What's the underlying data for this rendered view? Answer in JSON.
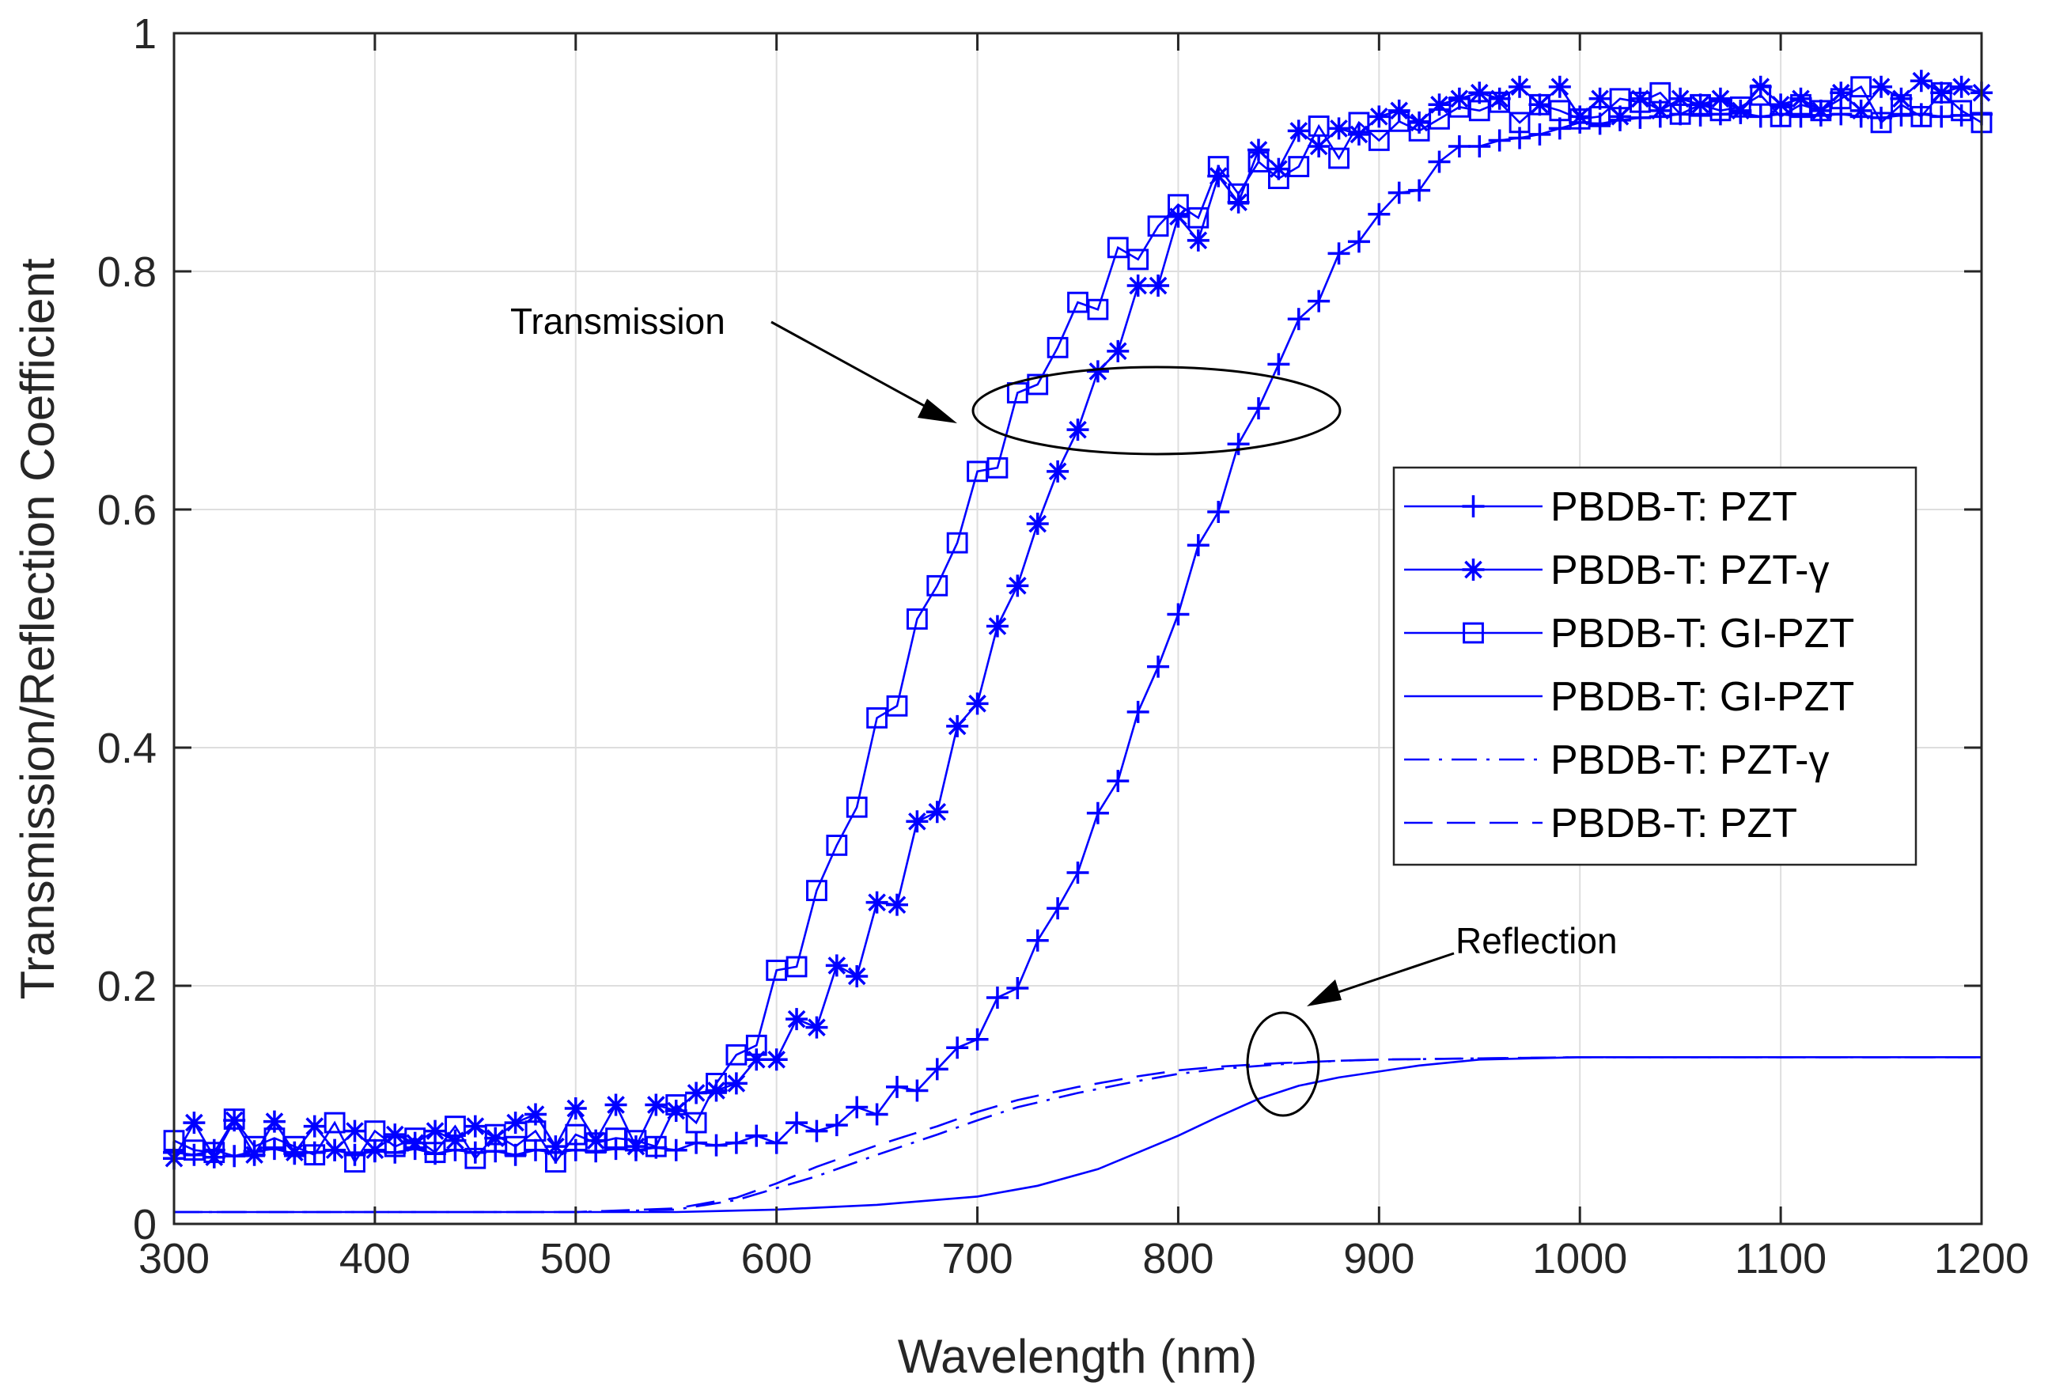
{
  "chart_data": {
    "type": "line",
    "title": "",
    "xlabel": "Wavelength (nm)",
    "ylabel": "Transmission/Reflection Coefficient",
    "xlim": [
      300,
      1200
    ],
    "ylim": [
      0,
      1
    ],
    "xticks": [
      300,
      400,
      500,
      600,
      700,
      800,
      900,
      1000,
      1100,
      1200
    ],
    "yticks": [
      0,
      0.2,
      0.4,
      0.6,
      0.8,
      1
    ],
    "ytick_labels": [
      "0",
      "0.2",
      "0.4",
      "0.6",
      "0.8",
      "1"
    ],
    "grid": true,
    "legend_position": "right",
    "colors": {
      "series": "#0000ff",
      "axis": "#262626",
      "grid": "#dedede"
    },
    "annotations": [
      {
        "text": "Transmission",
        "points_to": "transmission curves (ellipse)"
      },
      {
        "text": "Reflection",
        "points_to": "reflection curves (ellipse)"
      }
    ],
    "series": [
      {
        "name": "PBDB-T: PZT",
        "group": "transmission",
        "line": "solid",
        "marker": "plus",
        "x": [
          300,
          310,
          320,
          330,
          340,
          350,
          360,
          370,
          380,
          390,
          400,
          410,
          420,
          430,
          440,
          450,
          460,
          470,
          480,
          490,
          500,
          510,
          520,
          530,
          540,
          550,
          560,
          570,
          580,
          590,
          600,
          610,
          620,
          630,
          640,
          650,
          660,
          670,
          680,
          690,
          700,
          710,
          720,
          730,
          740,
          750,
          760,
          770,
          780,
          790,
          800,
          810,
          820,
          830,
          840,
          850,
          860,
          870,
          880,
          890,
          900,
          910,
          920,
          930,
          940,
          950,
          960,
          970,
          980,
          990,
          1000,
          1010,
          1020,
          1030,
          1040,
          1050,
          1060,
          1070,
          1080,
          1090,
          1100,
          1110,
          1120,
          1130,
          1140,
          1150,
          1160,
          1170,
          1180,
          1190,
          1200
        ],
        "y": [
          0.06,
          0.058,
          0.062,
          0.057,
          0.061,
          0.063,
          0.059,
          0.06,
          0.062,
          0.058,
          0.061,
          0.06,
          0.063,
          0.059,
          0.062,
          0.06,
          0.061,
          0.058,
          0.062,
          0.06,
          0.062,
          0.061,
          0.063,
          0.062,
          0.064,
          0.062,
          0.068,
          0.066,
          0.068,
          0.074,
          0.068,
          0.085,
          0.078,
          0.083,
          0.098,
          0.092,
          0.115,
          0.112,
          0.13,
          0.148,
          0.155,
          0.19,
          0.198,
          0.238,
          0.265,
          0.295,
          0.345,
          0.372,
          0.43,
          0.468,
          0.512,
          0.57,
          0.598,
          0.655,
          0.685,
          0.722,
          0.76,
          0.775,
          0.815,
          0.825,
          0.848,
          0.866,
          0.868,
          0.892,
          0.905,
          0.905,
          0.91,
          0.912,
          0.915,
          0.92,
          0.925,
          0.924,
          0.927,
          0.929,
          0.93,
          0.932,
          0.931,
          0.932,
          0.933,
          0.93,
          0.932,
          0.93,
          0.931,
          0.932,
          0.93,
          0.929,
          0.931,
          0.932,
          0.93,
          0.931,
          0.932
        ]
      },
      {
        "name": "PBDB-T: PZT-γ",
        "group": "transmission",
        "line": "solid",
        "marker": "asterisk",
        "x": [
          300,
          310,
          320,
          330,
          340,
          350,
          360,
          370,
          380,
          390,
          400,
          410,
          420,
          430,
          440,
          450,
          460,
          470,
          480,
          490,
          500,
          510,
          520,
          530,
          540,
          550,
          560,
          570,
          580,
          590,
          600,
          610,
          620,
          630,
          640,
          650,
          660,
          670,
          680,
          690,
          700,
          710,
          720,
          730,
          740,
          750,
          760,
          770,
          780,
          790,
          800,
          810,
          820,
          830,
          840,
          850,
          860,
          870,
          880,
          890,
          900,
          910,
          920,
          930,
          940,
          950,
          960,
          970,
          980,
          990,
          1000,
          1010,
          1020,
          1030,
          1040,
          1050,
          1060,
          1070,
          1080,
          1090,
          1100,
          1110,
          1120,
          1130,
          1140,
          1150,
          1160,
          1170,
          1180,
          1190,
          1200
        ],
        "y": [
          0.055,
          0.085,
          0.056,
          0.087,
          0.058,
          0.086,
          0.06,
          0.082,
          0.062,
          0.078,
          0.062,
          0.075,
          0.068,
          0.078,
          0.07,
          0.082,
          0.072,
          0.085,
          0.092,
          0.065,
          0.097,
          0.07,
          0.1,
          0.065,
          0.1,
          0.095,
          0.11,
          0.112,
          0.118,
          0.138,
          0.138,
          0.172,
          0.165,
          0.217,
          0.208,
          0.27,
          0.268,
          0.338,
          0.346,
          0.418,
          0.437,
          0.502,
          0.536,
          0.588,
          0.632,
          0.667,
          0.716,
          0.733,
          0.788,
          0.788,
          0.846,
          0.826,
          0.88,
          0.858,
          0.902,
          0.886,
          0.918,
          0.905,
          0.92,
          0.915,
          0.93,
          0.935,
          0.925,
          0.94,
          0.945,
          0.95,
          0.945,
          0.955,
          0.94,
          0.955,
          0.93,
          0.945,
          0.93,
          0.945,
          0.935,
          0.945,
          0.94,
          0.945,
          0.935,
          0.955,
          0.94,
          0.945,
          0.935,
          0.95,
          0.935,
          0.955,
          0.945,
          0.96,
          0.95,
          0.955,
          0.95
        ]
      },
      {
        "name": "PBDB-T: GI-PZT",
        "group": "transmission",
        "line": "solid",
        "marker": "square",
        "x": [
          300,
          310,
          320,
          330,
          340,
          350,
          360,
          370,
          380,
          390,
          400,
          410,
          420,
          430,
          440,
          450,
          460,
          470,
          480,
          490,
          500,
          510,
          520,
          530,
          540,
          550,
          560,
          570,
          580,
          590,
          600,
          610,
          620,
          630,
          640,
          650,
          660,
          670,
          680,
          690,
          700,
          710,
          720,
          730,
          740,
          750,
          760,
          770,
          780,
          790,
          800,
          810,
          820,
          830,
          840,
          850,
          860,
          870,
          880,
          890,
          900,
          910,
          920,
          930,
          940,
          950,
          960,
          970,
          980,
          990,
          1000,
          1010,
          1020,
          1030,
          1040,
          1050,
          1060,
          1070,
          1080,
          1090,
          1100,
          1110,
          1120,
          1130,
          1140,
          1150,
          1160,
          1170,
          1180,
          1190,
          1200
        ],
        "y": [
          0.07,
          0.062,
          0.06,
          0.088,
          0.065,
          0.072,
          0.065,
          0.058,
          0.085,
          0.052,
          0.078,
          0.065,
          0.072,
          0.06,
          0.082,
          0.055,
          0.075,
          0.065,
          0.078,
          0.052,
          0.075,
          0.068,
          0.072,
          0.07,
          0.065,
          0.1,
          0.085,
          0.118,
          0.142,
          0.15,
          0.213,
          0.216,
          0.28,
          0.318,
          0.35,
          0.425,
          0.435,
          0.508,
          0.536,
          0.572,
          0.632,
          0.635,
          0.698,
          0.705,
          0.736,
          0.774,
          0.768,
          0.82,
          0.81,
          0.838,
          0.856,
          0.845,
          0.888,
          0.865,
          0.892,
          0.878,
          0.888,
          0.922,
          0.895,
          0.925,
          0.91,
          0.926,
          0.918,
          0.928,
          0.938,
          0.935,
          0.942,
          0.925,
          0.94,
          0.935,
          0.928,
          0.93,
          0.945,
          0.942,
          0.95,
          0.932,
          0.94,
          0.935,
          0.938,
          0.948,
          0.93,
          0.94,
          0.935,
          0.945,
          0.955,
          0.925,
          0.94,
          0.93,
          0.95,
          0.935,
          0.925
        ]
      },
      {
        "name": "PBDB-T: GI-PZT",
        "group": "reflection",
        "line": "solid",
        "marker": "none",
        "x": [
          300,
          350,
          400,
          450,
          500,
          550,
          600,
          650,
          700,
          730,
          760,
          780,
          800,
          820,
          840,
          860,
          880,
          900,
          920,
          950,
          1000,
          1050,
          1100,
          1150,
          1200
        ],
        "y": [
          0.01,
          0.01,
          0.01,
          0.01,
          0.01,
          0.01,
          0.012,
          0.016,
          0.023,
          0.032,
          0.046,
          0.06,
          0.074,
          0.09,
          0.105,
          0.116,
          0.123,
          0.128,
          0.133,
          0.138,
          0.14,
          0.14,
          0.14,
          0.14,
          0.14
        ]
      },
      {
        "name": "PBDB-T: PZT-γ",
        "group": "reflection",
        "line": "dashdot",
        "marker": "none",
        "x": [
          300,
          350,
          400,
          450,
          500,
          550,
          580,
          600,
          620,
          650,
          680,
          700,
          720,
          750,
          780,
          800,
          820,
          850,
          880,
          900,
          950,
          1000,
          1050,
          1100,
          1150,
          1200
        ],
        "y": [
          0.01,
          0.01,
          0.01,
          0.01,
          0.01,
          0.012,
          0.02,
          0.03,
          0.04,
          0.058,
          0.075,
          0.087,
          0.098,
          0.11,
          0.12,
          0.126,
          0.13,
          0.134,
          0.137,
          0.138,
          0.139,
          0.14,
          0.14,
          0.14,
          0.14,
          0.14
        ]
      },
      {
        "name": "PBDB-T: PZT",
        "group": "reflection",
        "line": "dashed",
        "marker": "none",
        "x": [
          300,
          350,
          400,
          450,
          500,
          550,
          580,
          600,
          620,
          650,
          680,
          700,
          720,
          750,
          780,
          800,
          820,
          850,
          880,
          900,
          950,
          1000,
          1050,
          1100,
          1150,
          1200
        ],
        "y": [
          0.01,
          0.01,
          0.01,
          0.01,
          0.01,
          0.013,
          0.022,
          0.034,
          0.048,
          0.066,
          0.082,
          0.094,
          0.104,
          0.115,
          0.124,
          0.129,
          0.132,
          0.135,
          0.137,
          0.138,
          0.139,
          0.14,
          0.14,
          0.14,
          0.14,
          0.14
        ]
      }
    ]
  }
}
